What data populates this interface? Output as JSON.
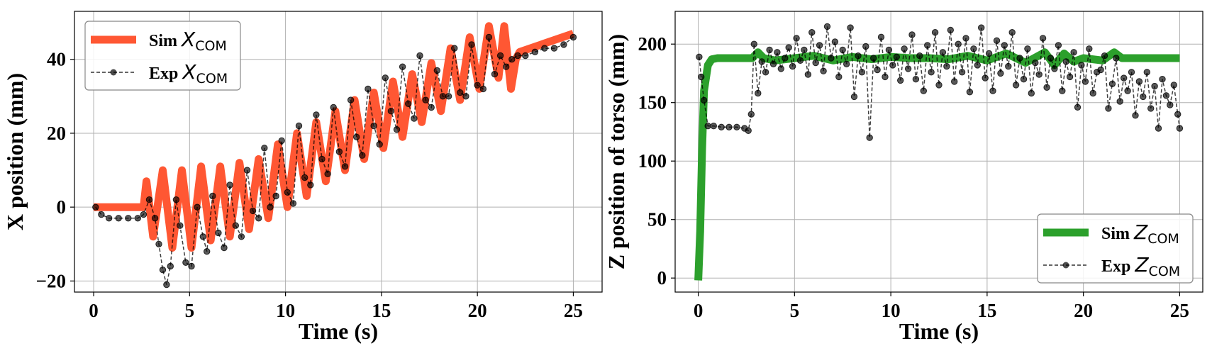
{
  "chart_data": [
    {
      "type": "line",
      "xlabel": "Time (s)",
      "ylabel": "X position (mm)",
      "xlim": [
        -1,
        26.5
      ],
      "ylim": [
        -23,
        53
      ],
      "xticks": [
        0,
        5,
        10,
        15,
        20,
        25
      ],
      "xtick_labels": [
        "0",
        "5",
        "10",
        "15",
        "20",
        "25"
      ],
      "yticks": [
        -20,
        0,
        20,
        40
      ],
      "ytick_labels": [
        "−20",
        "0",
        "20",
        "40"
      ],
      "grid": true,
      "legend": "top-left",
      "series": [
        {
          "name_prefix": "Sim",
          "name_symbol": "X",
          "name_sub": "COM",
          "style": "thick-line",
          "color": "#ff5733",
          "x": [
            0,
            2.6,
            2.75,
            3.1,
            3.6,
            4.1,
            4.6,
            5.1,
            5.6,
            6.1,
            6.6,
            7.1,
            7.6,
            8.1,
            8.6,
            9.1,
            9.6,
            10.1,
            10.6,
            11.1,
            11.6,
            12.1,
            12.6,
            13.1,
            13.6,
            14.1,
            14.6,
            15.1,
            15.6,
            16.1,
            16.6,
            17.1,
            17.6,
            18.1,
            18.6,
            19.1,
            19.6,
            20.1,
            20.6,
            21.1,
            21.4,
            21.75,
            22.0,
            22.2,
            25
          ],
          "y": [
            0,
            0,
            7,
            -8,
            10,
            -11,
            10,
            -11,
            11,
            -9,
            11,
            -8,
            12,
            -6,
            13,
            -3,
            17,
            0,
            20,
            3,
            23,
            7,
            26,
            10,
            29,
            13,
            31,
            16,
            34,
            19,
            36,
            23,
            39,
            26,
            43,
            29,
            46,
            32,
            49,
            35,
            49,
            32,
            40,
            42,
            47
          ]
        },
        {
          "name_prefix": "Exp",
          "name_symbol": "X",
          "name_sub": "COM",
          "style": "dashed-dots",
          "color": "#000000",
          "x": [
            0.1,
            0.4,
            0.8,
            1.3,
            1.8,
            2.3,
            2.6,
            2.9,
            3.2,
            3.4,
            3.6,
            3.8,
            4.0,
            4.3,
            4.5,
            4.8,
            5.1,
            5.4,
            5.7,
            5.9,
            6.2,
            6.5,
            6.8,
            7.1,
            7.4,
            7.7,
            8.0,
            8.3,
            8.6,
            8.9,
            9.2,
            9.5,
            9.8,
            10.1,
            10.4,
            10.7,
            11.0,
            11.3,
            11.6,
            11.9,
            12.2,
            12.5,
            12.8,
            13.1,
            13.4,
            13.7,
            14.0,
            14.3,
            14.6,
            14.9,
            15.2,
            15.5,
            15.8,
            16.1,
            16.4,
            16.7,
            17.0,
            17.3,
            17.6,
            17.9,
            18.2,
            18.5,
            18.8,
            19.1,
            19.4,
            19.7,
            20.0,
            20.3,
            20.6,
            20.9,
            21.2,
            21.5,
            21.8,
            22.1,
            22.5,
            23.0,
            23.5,
            24.0,
            24.5,
            25.0
          ],
          "y": [
            0,
            -2,
            -3,
            -3,
            -3,
            -3,
            -2,
            2,
            -3,
            -10,
            -17,
            -21,
            -16,
            2,
            -5,
            -15,
            -16,
            0,
            -8,
            -12,
            3,
            -7,
            -11,
            6,
            -5,
            -8,
            10,
            -1,
            -3,
            16,
            0,
            3,
            18,
            4,
            1,
            22,
            8,
            6,
            25,
            13,
            9,
            27,
            15,
            11,
            29,
            19,
            14,
            32,
            22,
            17,
            35,
            26,
            21,
            38,
            28,
            24,
            41,
            29,
            27,
            37,
            30,
            30,
            43,
            31,
            30,
            44,
            33,
            32,
            46,
            36,
            41,
            38,
            40,
            41,
            41,
            42,
            43,
            43,
            44,
            46
          ]
        }
      ]
    },
    {
      "type": "line",
      "xlabel": "Time (s)",
      "ylabel": "Z position of torso (mm)",
      "xlim": [
        -1.2,
        26.2
      ],
      "ylim": [
        -12,
        228
      ],
      "xticks": [
        0,
        5,
        10,
        15,
        20,
        25
      ],
      "xtick_labels": [
        "0",
        "5",
        "10",
        "15",
        "20",
        "25"
      ],
      "yticks": [
        0,
        50,
        100,
        150,
        200
      ],
      "ytick_labels": [
        "0",
        "50",
        "100",
        "150",
        "200"
      ],
      "grid": true,
      "legend": "bottom-right",
      "series": [
        {
          "name_prefix": "Sim",
          "name_symbol": "Z",
          "name_sub": "COM",
          "style": "thick-line",
          "color": "#2ca02c",
          "x": [
            0,
            0.1,
            0.2,
            0.3,
            0.5,
            0.7,
            1.0,
            2.0,
            2.8,
            3.1,
            3.4,
            4.0,
            5.0,
            6.0,
            7.0,
            8.0,
            9.0,
            10.0,
            11.0,
            12.0,
            13.0,
            14.0,
            15.0,
            16.0,
            17.0,
            18.0,
            18.5,
            19.0,
            19.5,
            20.0,
            21.0,
            21.6,
            22.0,
            25
          ],
          "y": [
            -2,
            40,
            110,
            160,
            182,
            187,
            188,
            188,
            188,
            193,
            188,
            186,
            188,
            190,
            186,
            189,
            187,
            189,
            188,
            188,
            187,
            190,
            186,
            192,
            184,
            193,
            182,
            192,
            185,
            188,
            186,
            193,
            188,
            188
          ]
        },
        {
          "name_prefix": "Exp",
          "name_symbol": "Z",
          "name_sub": "COM",
          "style": "dashed-dots",
          "color": "#000000",
          "x": [
            0.05,
            0.15,
            0.3,
            0.5,
            0.8,
            1.2,
            1.6,
            2.0,
            2.4,
            2.6,
            2.75,
            2.9,
            3.1,
            3.3,
            3.5,
            3.7,
            3.9,
            4.1,
            4.3,
            4.5,
            4.7,
            4.9,
            5.1,
            5.3,
            5.5,
            5.7,
            5.9,
            6.1,
            6.3,
            6.5,
            6.7,
            6.9,
            7.1,
            7.3,
            7.5,
            7.7,
            7.9,
            8.1,
            8.3,
            8.5,
            8.7,
            8.9,
            9.1,
            9.3,
            9.5,
            9.7,
            9.9,
            10.1,
            10.3,
            10.5,
            10.7,
            10.9,
            11.1,
            11.3,
            11.5,
            11.7,
            11.9,
            12.1,
            12.3,
            12.5,
            12.7,
            12.9,
            13.1,
            13.3,
            13.5,
            13.7,
            13.9,
            14.1,
            14.3,
            14.5,
            14.7,
            14.9,
            15.1,
            15.3,
            15.5,
            15.7,
            15.9,
            16.1,
            16.3,
            16.5,
            16.7,
            16.9,
            17.1,
            17.3,
            17.5,
            17.7,
            17.9,
            18.1,
            18.3,
            18.5,
            18.7,
            18.9,
            19.1,
            19.3,
            19.5,
            19.7,
            19.9,
            20.1,
            20.3,
            20.5,
            20.7,
            20.9,
            21.1,
            21.3,
            21.5,
            21.7,
            21.9,
            22.1,
            22.3,
            22.5,
            22.7,
            22.9,
            23.1,
            23.3,
            23.5,
            23.7,
            23.9,
            24.1,
            24.3,
            24.5,
            24.7,
            24.9,
            25.0
          ],
          "y": [
            189,
            172,
            152,
            130,
            130,
            129,
            129,
            129,
            128,
            126,
            140,
            200,
            158,
            185,
            176,
            195,
            183,
            193,
            179,
            188,
            197,
            181,
            205,
            186,
            195,
            174,
            210,
            184,
            199,
            177,
            215,
            188,
            202,
            172,
            195,
            183,
            214,
            155,
            190,
            176,
            198,
            120,
            188,
            178,
            206,
            172,
            195,
            182,
            189,
            169,
            196,
            179,
            208,
            170,
            190,
            160,
            199,
            176,
            210,
            165,
            193,
            181,
            212,
            168,
            200,
            176,
            205,
            159,
            196,
            182,
            214,
            171,
            192,
            160,
            203,
            175,
            199,
            181,
            210,
            165,
            188,
            170,
            196,
            158,
            184,
            174,
            205,
            163,
            188,
            179,
            199,
            160,
            185,
            172,
            193,
            146,
            182,
            168,
            196,
            158,
            176,
            178,
            190,
            145,
            166,
            188,
            151,
            171,
            160,
            176,
            139,
            168,
            155,
            176,
            145,
            164,
            128,
            170,
            156,
            148,
            165,
            140,
            128
          ]
        }
      ]
    }
  ]
}
